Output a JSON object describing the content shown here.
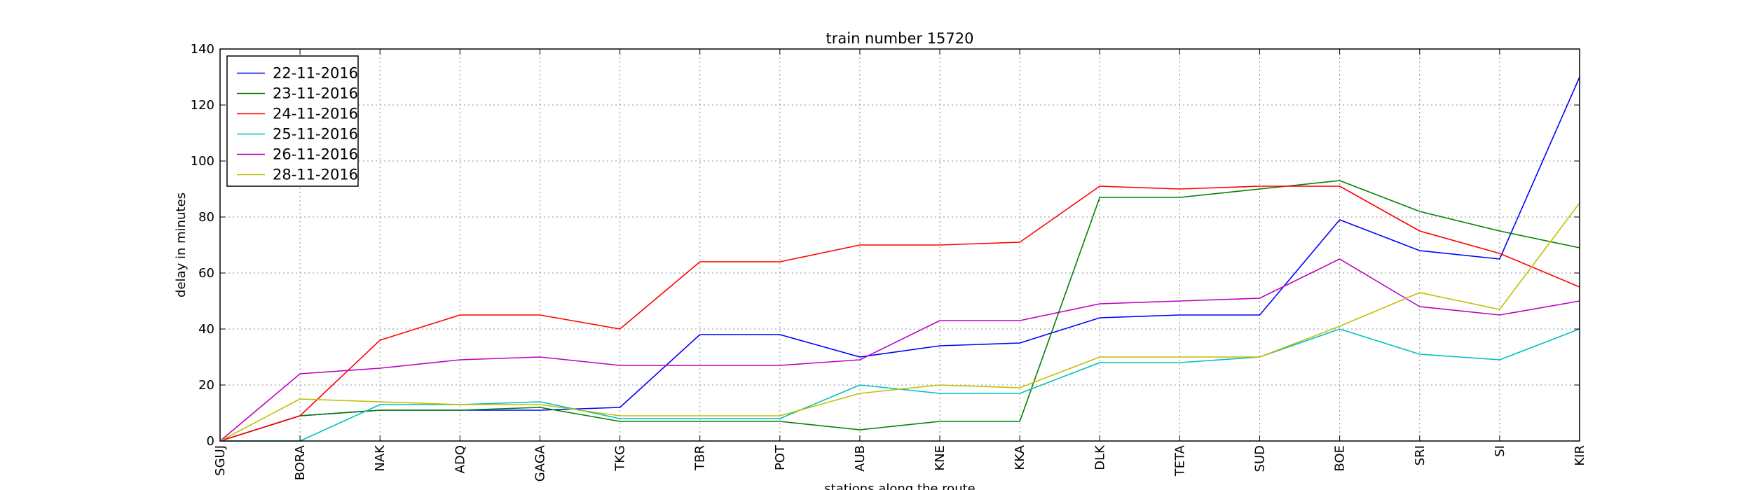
{
  "chart_data": {
    "type": "line",
    "title": "train number 15720",
    "xlabel": "stations along the route",
    "ylabel": "delay in minutes",
    "categories": [
      "SGUJ",
      "BORA",
      "NAK",
      "ADQ",
      "GAGA",
      "TKG",
      "TBR",
      "POT",
      "AUB",
      "KNE",
      "KKA",
      "DLK",
      "TETA",
      "SUD",
      "BOE",
      "SRI",
      "SI",
      "KIR"
    ],
    "ylim": [
      0,
      140
    ],
    "yticks": [
      0,
      20,
      40,
      60,
      80,
      100,
      120,
      140
    ],
    "grid": true,
    "legend_position": "top-left",
    "series": [
      {
        "name": "22-11-2016",
        "color": "#0000ff",
        "values": [
          0,
          9,
          11,
          11,
          11,
          12,
          38,
          38,
          30,
          34,
          35,
          44,
          45,
          45,
          79,
          68,
          65,
          130
        ]
      },
      {
        "name": "23-11-2016",
        "color": "#008000",
        "values": [
          0,
          9,
          11,
          11,
          12,
          7,
          7,
          7,
          4,
          7,
          7,
          87,
          87,
          90,
          93,
          82,
          75,
          69
        ]
      },
      {
        "name": "24-11-2016",
        "color": "#ff0000",
        "values": [
          0,
          9,
          36,
          45,
          45,
          40,
          64,
          64,
          70,
          70,
          71,
          91,
          90,
          91,
          91,
          75,
          67,
          55
        ]
      },
      {
        "name": "25-11-2016",
        "color": "#00bfbf",
        "values": [
          0,
          0,
          13,
          13,
          14,
          8,
          8,
          8,
          20,
          17,
          17,
          28,
          28,
          30,
          40,
          31,
          29,
          40
        ]
      },
      {
        "name": "26-11-2016",
        "color": "#bf00bf",
        "values": [
          0,
          24,
          26,
          29,
          30,
          27,
          27,
          27,
          29,
          43,
          43,
          49,
          50,
          51,
          65,
          48,
          45,
          50
        ]
      },
      {
        "name": "28-11-2016",
        "color": "#bfbf00",
        "values": [
          0,
          15,
          14,
          13,
          13,
          9,
          9,
          9,
          17,
          20,
          19,
          30,
          30,
          30,
          41,
          53,
          47,
          85
        ]
      }
    ]
  }
}
